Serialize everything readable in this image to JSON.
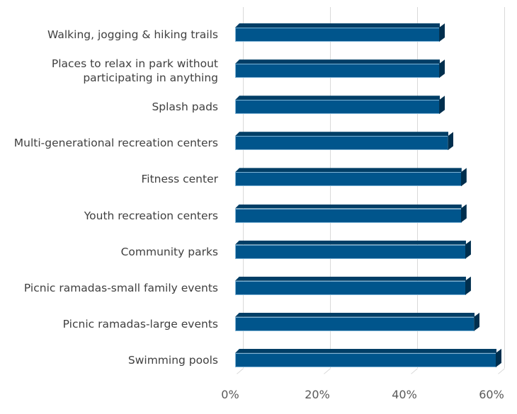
{
  "chart_data": {
    "type": "bar",
    "orientation": "horizontal",
    "style": "3d-clustered",
    "title": "",
    "xlabel": "",
    "ylabel": "",
    "categories": [
      "Walking, jogging & hiking trails",
      "Places to relax in park without\nparticipating in anything",
      "Splash pads",
      "Multi-generational recreation centers",
      "Fitness center",
      "Youth recreation centers",
      "Community parks",
      "Picnic ramadas-small family events",
      "Picnic ramadas-large events",
      "Swimming pools"
    ],
    "values": [
      47,
      47,
      47,
      49,
      52,
      52,
      53,
      53,
      55,
      60
    ],
    "value_unit": "%",
    "xlim": [
      0,
      60
    ],
    "x_ticks": [
      "0%",
      "20%",
      "40%",
      "60%"
    ],
    "grid": true,
    "legend": null,
    "bar_color": "#00558c"
  }
}
